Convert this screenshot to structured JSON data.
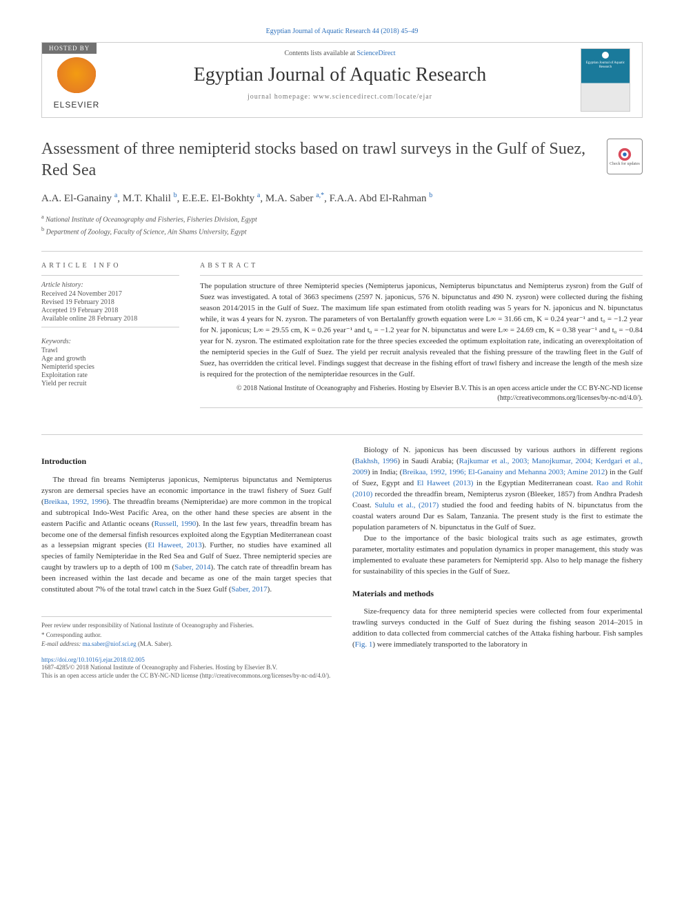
{
  "top_citation": "Egyptian Journal of Aquatic Research 44 (2018) 45–49",
  "header": {
    "hosted_by": "HOSTED BY",
    "elsevier": "ELSEVIER",
    "contents_prefix": "Contents lists available at ",
    "contents_link": "ScienceDirect",
    "journal_title": "Egyptian Journal of Aquatic Research",
    "homepage": "journal homepage: www.sciencedirect.com/locate/ejar",
    "cover_text": "Egyptian Journal of Aquatic Research"
  },
  "article": {
    "title": "Assessment of three nemipterid stocks based on trawl surveys in the Gulf of Suez, Red Sea",
    "check_updates": "Check for updates",
    "authors_html": "A.A. El-Ganainy <sup>a</sup>, M.T. Khalil <sup>b</sup>, E.E.E. El-Bokhty <sup>a</sup>, M.A. Saber <sup>a,*</sup>, F.A.A. Abd El-Rahman <sup>b</sup>",
    "affiliations": [
      {
        "sup": "a",
        "text": "National Institute of Oceanography and Fisheries, Fisheries Division, Egypt"
      },
      {
        "sup": "b",
        "text": "Department of Zoology, Faculty of Science, Ain Shams University, Egypt"
      }
    ]
  },
  "info": {
    "heading": "ARTICLE INFO",
    "history_label": "Article history:",
    "history": [
      "Received 24 November 2017",
      "Revised 19 February 2018",
      "Accepted 19 February 2018",
      "Available online 28 February 2018"
    ],
    "keywords_label": "Keywords:",
    "keywords": [
      "Trawl",
      "Age and growth",
      "Nemipterid species",
      "Exploitation rate",
      "Yield per recruit"
    ]
  },
  "abstract": {
    "heading": "ABSTRACT",
    "text": "The population structure of three Nemipterid species (Nemipterus japonicus, Nemipterus bipunctatus and Nemipterus zysron) from the Gulf of Suez was investigated. A total of 3663 specimens (2597 N. japonicus, 576 N. bipunctatus and 490 N. zysron) were collected during the fishing season 2014/2015 in the Gulf of Suez. The maximum life span estimated from otolith reading was 5 years for N. japonicus and N. bipunctatus while, it was 4 years for N. zysron. The parameters of von Bertalanffy growth equation were L∞ = 31.66 cm, K = 0.24 year⁻¹ and t₀ = −1.2 year for N. japonicus; L∞ = 29.55 cm, K = 0.26 year⁻¹ and t₀ = −1.2 year for N. bipunctatus and were L∞ = 24.69 cm, K = 0.38 year⁻¹ and t₀ = −0.84 year for N. zysron. The estimated exploitation rate for the three species exceeded the optimum exploitation rate, indicating an overexploitation of the nemipterid species in the Gulf of Suez. The yield per recruit analysis revealed that the fishing pressure of the trawling fleet in the Gulf of Suez, has overridden the critical level. Findings suggest that decrease in the fishing effort of trawl fishery and increase the length of the mesh size is required for the protection of the nemipteridae resources in the Gulf.",
    "copyright": "© 2018 National Institute of Oceanography and Fisheries. Hosting by Elsevier B.V. This is an open access article under the CC BY-NC-ND license (",
    "cc_link": "http://creativecommons.org/licenses/by-nc-nd/4.0/",
    "copyright_close": ")."
  },
  "body": {
    "intro_heading": "Introduction",
    "intro_p1_a": "The thread fin breams Nemipterus japonicus, Nemipterus bipunctatus and Nemipterus zysron are demersal species have an economic importance in the trawl fishery of Suez Gulf (",
    "intro_p1_link1": "Breikaa, 1992, 1996",
    "intro_p1_b": "). The threadfin breams (Nemipteridae) are more common in the tropical and subtropical Indo-West Pacific Area, on the other hand these species are absent in the eastern Pacific and Atlantic oceans (",
    "intro_p1_link2": "Russell, 1990",
    "intro_p1_c": "). In the last few years, threadfin bream has become one of the demersal finfish resources exploited along the Egyptian Mediterranean coast as a lessepsian migrant species (",
    "intro_p1_link3": "El Haweet, 2013",
    "intro_p1_d": "). Further, no studies have examined all species of family Nemipteridae in the Red Sea and Gulf of Suez. Three nemipterid species are caught by trawlers up to a depth of 100 m (",
    "intro_p1_link4": "Saber, 2014",
    "intro_p1_e": "). The catch rate of threadfin bream has been increased within the last decade and became as one of the main target species that constituted about 7% of the total trawl catch in the Suez Gulf (",
    "intro_p1_link5": "Saber, 2017",
    "intro_p1_f": ").",
    "col2_p1_a": "Biology of N. japonicus has been discussed by various authors in different regions (",
    "col2_p1_link1": "Bakhsh, 1996",
    "col2_p1_b": ") in Saudi Arabia; (",
    "col2_p1_link2": "Rajkumar et al., 2003; Manojkumar, 2004; Kerdgari et al., 2009",
    "col2_p1_c": ") in India; (",
    "col2_p1_link3": "Breikaa, 1992, 1996; El-Ganainy and Mehanna 2003; Amine 2012",
    "col2_p1_d": ") in the Gulf of Suez, Egypt and ",
    "col2_p1_link4": "El Haweet (2013)",
    "col2_p1_e": " in the Egyptian Mediterranean coast. ",
    "col2_p1_link5": "Rao and Rohit (2010)",
    "col2_p1_f": " recorded the threadfin bream, Nemipterus zysron (Bleeker, 1857) from Andhra Pradesh Coast. ",
    "col2_p1_link6": "Sululu et al., (2017)",
    "col2_p1_g": " studied the food and feeding habits of N. bipunctatus from the coastal waters around Dar es Salam, Tanzania. The present study is the first to estimate the population parameters of N. bipunctatus in the Gulf of Suez.",
    "col2_p2": "Due to the importance of the basic biological traits such as age estimates, growth parameter, mortality estimates and population dynamics in proper management, this study was implemented to evaluate these parameters for Nemipterid spp. Also to help manage the fishery for sustainability of this species in the Gulf of Suez.",
    "methods_heading": "Materials and methods",
    "methods_p1_a": "Size-frequency data for three nemipterid species were collected from four experimental trawling surveys conducted in the Gulf of Suez during the fishing season 2014–2015 in addition to data collected from commercial catches of the Attaka fishing harbour. Fish samples (",
    "methods_p1_link1": "Fig. 1",
    "methods_p1_b": ") were immediately transported to the laboratory in"
  },
  "footer": {
    "peer_review": "Peer review under responsibility of National Institute of Oceanography and Fisheries.",
    "corr_author": "* Corresponding author.",
    "email_label": "E-mail address: ",
    "email": "ma.saber@niof.sci.eg",
    "email_suffix": " (M.A. Saber).",
    "doi": "https://doi.org/10.1016/j.ejar.2018.02.005",
    "issn_line": "1687-4285/© 2018 National Institute of Oceanography and Fisheries. Hosting by Elsevier B.V.",
    "oa_line_a": "This is an open access article under the CC BY-NC-ND license (",
    "oa_link": "http://creativecommons.org/licenses/by-nc-nd/4.0/",
    "oa_line_b": ")."
  },
  "colors": {
    "link": "#2a6ebb",
    "text": "#333333",
    "muted": "#555555",
    "border": "#cccccc",
    "hosted_bg": "#717171",
    "cover_blue": "#1a7a9b"
  }
}
